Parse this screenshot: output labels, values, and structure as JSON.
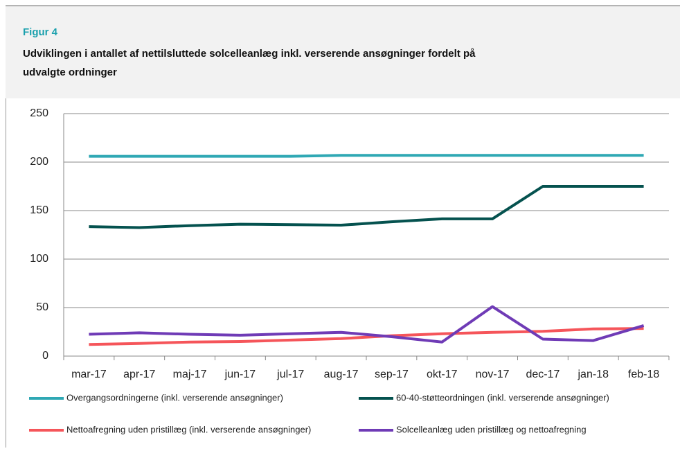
{
  "figure_label": "Figur 4",
  "chart_data": {
    "type": "line",
    "title": "Udviklingen i antallet af nettilsluttede solcelleanlæg inkl. verserende ansøgninger fordelt på udvalgte ordninger",
    "categories": [
      "mar-17",
      "apr-17",
      "maj-17",
      "jun-17",
      "jul-17",
      "aug-17",
      "sep-17",
      "okt-17",
      "nov-17",
      "dec-17",
      "jan-18",
      "feb-18"
    ],
    "series": [
      {
        "name": "Overgangsordningerne (inkl. verserende ansøgninger)",
        "color": "#2fa8b4",
        "values": [
          206,
          206,
          206,
          206,
          206,
          207,
          207,
          207,
          207,
          207,
          207,
          207
        ]
      },
      {
        "name": "60-40-støtteordningen (inkl. verserende ansøgninger)",
        "color": "#05524f",
        "values": [
          133.5,
          132.5,
          134.5,
          136,
          135.5,
          135,
          138.5,
          141.5,
          141.5,
          175,
          175,
          175
        ]
      },
      {
        "name": "Nettoafregning uden pristillæg (inkl. verserende ansøgninger)",
        "color": "#f5555a",
        "values": [
          12,
          13,
          14.5,
          15,
          16.5,
          18,
          21,
          23,
          24.5,
          25.5,
          28,
          28.5
        ]
      },
      {
        "name": "Solcelleanlæg uden pristillæg og nettoafregning",
        "color": "#6f3bb6",
        "values": [
          22.5,
          24,
          22.5,
          21.5,
          23,
          24.5,
          20,
          14.5,
          51,
          17.5,
          16,
          31.5
        ]
      }
    ],
    "ylim": [
      0,
      250
    ],
    "yticks": [
      0,
      50,
      100,
      150,
      200,
      250
    ],
    "grid": true,
    "legend": "bottom"
  }
}
